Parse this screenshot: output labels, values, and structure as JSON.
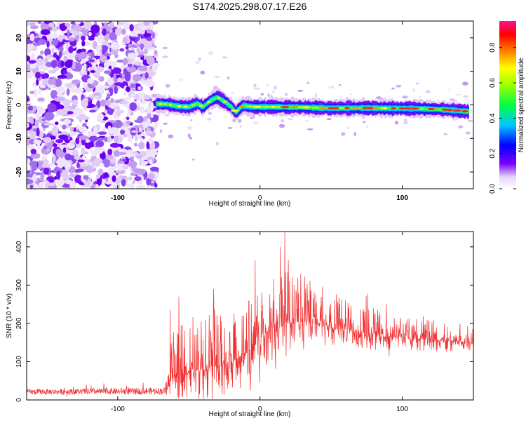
{
  "title": "S174.2025.298.07.17.E26",
  "chart_data": [
    {
      "type": "heatmap",
      "xlabel": "Height of straight line (km)",
      "ylabel": "Frequency (Hz)",
      "xlim": [
        -164,
        150
      ],
      "ylim": [
        -25,
        25
      ],
      "x_ticks": [
        -100,
        0,
        100
      ],
      "y_ticks": [
        -20,
        -10,
        0,
        10,
        20
      ],
      "noise_region_end_km": -73,
      "ridge": {
        "x": [
          -73,
          -65,
          -58,
          -50,
          -44,
          -40,
          -35,
          -30,
          -25,
          -20,
          -17,
          -12,
          -5,
          10,
          30,
          50,
          70,
          90,
          110,
          130,
          147
        ],
        "y": [
          0.3,
          0.2,
          -0.4,
          -0.6,
          0.4,
          -0.6,
          1.2,
          2.3,
          1.0,
          -0.6,
          -2.2,
          -0.2,
          -0.6,
          -0.6,
          -0.7,
          -1.0,
          -0.9,
          -1.0,
          -1.1,
          -1.4,
          -2.0
        ]
      },
      "colorbar": {
        "label": "Normalized spectral amplitude",
        "range": [
          0,
          0.95
        ],
        "ticks": [
          0.0,
          0.2,
          0.4,
          0.6,
          0.8
        ]
      }
    },
    {
      "type": "line",
      "xlabel": "Height of straight line (km)",
      "ylabel": "SNR (10 * v/v)",
      "xlim": [
        -164,
        150
      ],
      "ylim": [
        0,
        440
      ],
      "x_ticks": [
        -100,
        0,
        100
      ],
      "y_ticks": [
        0,
        100,
        200,
        300,
        400
      ],
      "series": [
        {
          "name": "SNR",
          "color": "#f03030",
          "envelope": {
            "x": [
              -164,
              -66,
              -62,
              -50,
              -40,
              -30,
              -20,
              -10,
              0,
              10,
              18,
              25,
              40,
              55,
              70,
              90,
              110,
              130,
              150
            ],
            "base": [
              18,
              20,
              55,
              75,
              80,
              90,
              100,
              120,
              160,
              190,
              200,
              205,
              200,
              185,
              175,
              165,
              160,
              155,
              150
            ],
            "amp": [
              14,
              18,
              120,
              150,
              150,
              150,
              130,
              140,
              140,
              140,
              150,
              130,
              110,
              90,
              70,
              60,
              55,
              50,
              45
            ]
          },
          "peaks": [
            {
              "x": 17.5,
              "y": 438
            },
            {
              "x": -32.5,
              "y": 290
            },
            {
              "x": -57,
              "y": 270
            },
            {
              "x": -63,
              "y": 235
            }
          ]
        }
      ]
    }
  ]
}
